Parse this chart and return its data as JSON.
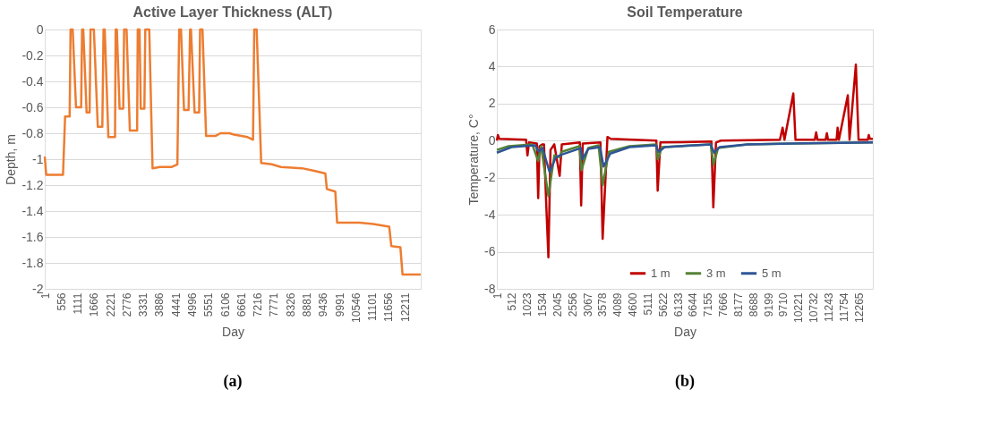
{
  "chart_data": [
    {
      "type": "line",
      "title": "Active Layer Thickness (ALT)",
      "xlabel": "Day",
      "ylabel": "Depth, m",
      "xlim": [
        1,
        12750
      ],
      "ylim": [
        -2,
        0
      ],
      "xticks": [
        1,
        556,
        1111,
        1666,
        2221,
        2776,
        3331,
        3886,
        4441,
        4996,
        5551,
        6106,
        6661,
        7216,
        7771,
        8326,
        8881,
        9436,
        9991,
        10546,
        11101,
        11656,
        12211
      ],
      "yticks": [
        -2,
        -1.8,
        -1.6,
        -1.4,
        -1.2,
        -1,
        -0.8,
        -0.6,
        -0.4,
        -0.2,
        0
      ],
      "grid": "y",
      "annotations": [
        "(a)"
      ],
      "series": [
        {
          "color": "#ed7d31",
          "x": [
            1,
            50,
            620,
            691,
            845,
            876,
            948,
            1061,
            1235,
            1266,
            1307,
            1420,
            1522,
            1553,
            1666,
            1799,
            1953,
            1994,
            2035,
            2158,
            2384,
            2405,
            2446,
            2538,
            2661,
            2692,
            2774,
            2887,
            3133,
            3154,
            3215,
            3256,
            3379,
            3410,
            3544,
            3656,
            3903,
            4313,
            4498,
            4559,
            4621,
            4723,
            4877,
            4929,
            4959,
            5082,
            5236,
            5267,
            5349,
            5472,
            5801,
            5955,
            6263,
            6417,
            6878,
            7063,
            7104,
            7186,
            7340,
            7699,
            8007,
            8725,
            9135,
            9515,
            9566,
            9853,
            9915,
            10674,
            11136,
            11680,
            11752,
            12060,
            12132,
            12747
          ],
          "values": [
            -0.98,
            -1.12,
            -1.12,
            -0.67,
            -0.67,
            0,
            0,
            -0.6,
            -0.6,
            0,
            0,
            -0.64,
            -0.64,
            0,
            0,
            -0.75,
            -0.75,
            0,
            0,
            -0.83,
            -0.83,
            0,
            0,
            -0.61,
            -0.61,
            0,
            0,
            -0.78,
            -0.78,
            0,
            0,
            -0.61,
            -0.61,
            0,
            0,
            -1.07,
            -1.06,
            -1.06,
            -1.04,
            0,
            0,
            -0.62,
            -0.62,
            0,
            0,
            -0.64,
            -0.64,
            0,
            0,
            -0.82,
            -0.82,
            -0.8,
            -0.8,
            -0.81,
            -0.83,
            -0.85,
            0,
            0,
            -1.03,
            -1.04,
            -1.06,
            -1.07,
            -1.09,
            -1.11,
            -1.23,
            -1.25,
            -1.49,
            -1.49,
            -1.5,
            -1.52,
            -1.67,
            -1.68,
            -1.89,
            -1.89
          ]
        }
      ]
    },
    {
      "type": "line",
      "title": "Soil Temperature",
      "xlabel": "Day",
      "ylabel": "Temperature, C°",
      "xlim": [
        1,
        12750
      ],
      "ylim": [
        -8,
        6
      ],
      "xticks": [
        1,
        512,
        1023,
        1534,
        2045,
        2556,
        3067,
        3578,
        4089,
        4600,
        5111,
        5622,
        6133,
        6644,
        7155,
        7666,
        8177,
        8688,
        9199,
        9710,
        10221,
        10732,
        11243,
        11754,
        12265
      ],
      "yticks": [
        -8,
        -6,
        -4,
        -2,
        0,
        2,
        4,
        6
      ],
      "grid": "y",
      "legend": "bottom",
      "annotations": [
        "(b)"
      ],
      "series": [
        {
          "name": "1 m",
          "color": "#c00000",
          "x": [
            1,
            38,
            83,
            993,
            1039,
            1093,
            1357,
            1403,
            1448,
            1539,
            1600,
            1680,
            1749,
            1821,
            1949,
            2131,
            2204,
            2814,
            2860,
            2914,
            3515,
            3588,
            3752,
            3861,
            5409,
            5455,
            5546,
            7277,
            7341,
            7432,
            7596,
            9599,
            9690,
            9754,
            10054,
            10127,
            10783,
            10828,
            10873,
            11150,
            11192,
            11230,
            11520,
            11556,
            11600,
            11902,
            11960,
            12175,
            12266,
            12580,
            12612,
            12650,
            12750
          ],
          "values": [
            0,
            0.3,
            0.1,
            0.05,
            -0.8,
            -0.1,
            -0.15,
            -3.1,
            -0.3,
            -0.2,
            -0.2,
            -3.6,
            -6.3,
            -0.5,
            -0.2,
            -1.9,
            -0.2,
            -0.1,
            -3.5,
            -0.15,
            -0.1,
            -5.3,
            0.2,
            0.1,
            0,
            -2.7,
            -0.1,
            -0.05,
            -3.6,
            -0.1,
            0,
            0.05,
            0.7,
            0.05,
            2.55,
            0.05,
            0.05,
            0.45,
            0.05,
            0.05,
            0.4,
            0.05,
            0.05,
            0.7,
            0.05,
            2.45,
            0.05,
            4.1,
            0.05,
            0.05,
            0.3,
            0.1,
            0.1
          ]
        },
        {
          "name": "3 m",
          "color": "#548235",
          "x": [
            1,
            400,
            1200,
            1403,
            1500,
            1749,
            1950,
            2131,
            2200,
            2800,
            2870,
            3100,
            3450,
            3590,
            3800,
            4500,
            5400,
            5460,
            5600,
            7250,
            7350,
            7500,
            8500,
            10000,
            12750
          ],
          "values": [
            -0.5,
            -0.3,
            -0.2,
            -1.1,
            -0.3,
            -3.0,
            -0.8,
            -0.9,
            -0.6,
            -0.3,
            -1.6,
            -0.4,
            -0.25,
            -2.4,
            -0.6,
            -0.3,
            -0.2,
            -1.0,
            -0.35,
            -0.2,
            -1.3,
            -0.4,
            -0.2,
            -0.15,
            -0.1
          ]
        },
        {
          "name": "5 m",
          "color": "#2f5597",
          "x": [
            1,
            500,
            1300,
            1420,
            1550,
            1790,
            2000,
            2200,
            2850,
            2900,
            3100,
            3500,
            3620,
            3850,
            4500,
            5400,
            5480,
            5700,
            7250,
            7370,
            7550,
            8500,
            10000,
            12750
          ],
          "values": [
            -0.65,
            -0.35,
            -0.25,
            -0.6,
            -0.4,
            -1.7,
            -0.9,
            -0.75,
            -0.4,
            -1.0,
            -0.45,
            -0.35,
            -1.4,
            -0.7,
            -0.35,
            -0.25,
            -0.6,
            -0.35,
            -0.2,
            -0.65,
            -0.35,
            -0.2,
            -0.15,
            -0.1
          ]
        }
      ]
    }
  ]
}
